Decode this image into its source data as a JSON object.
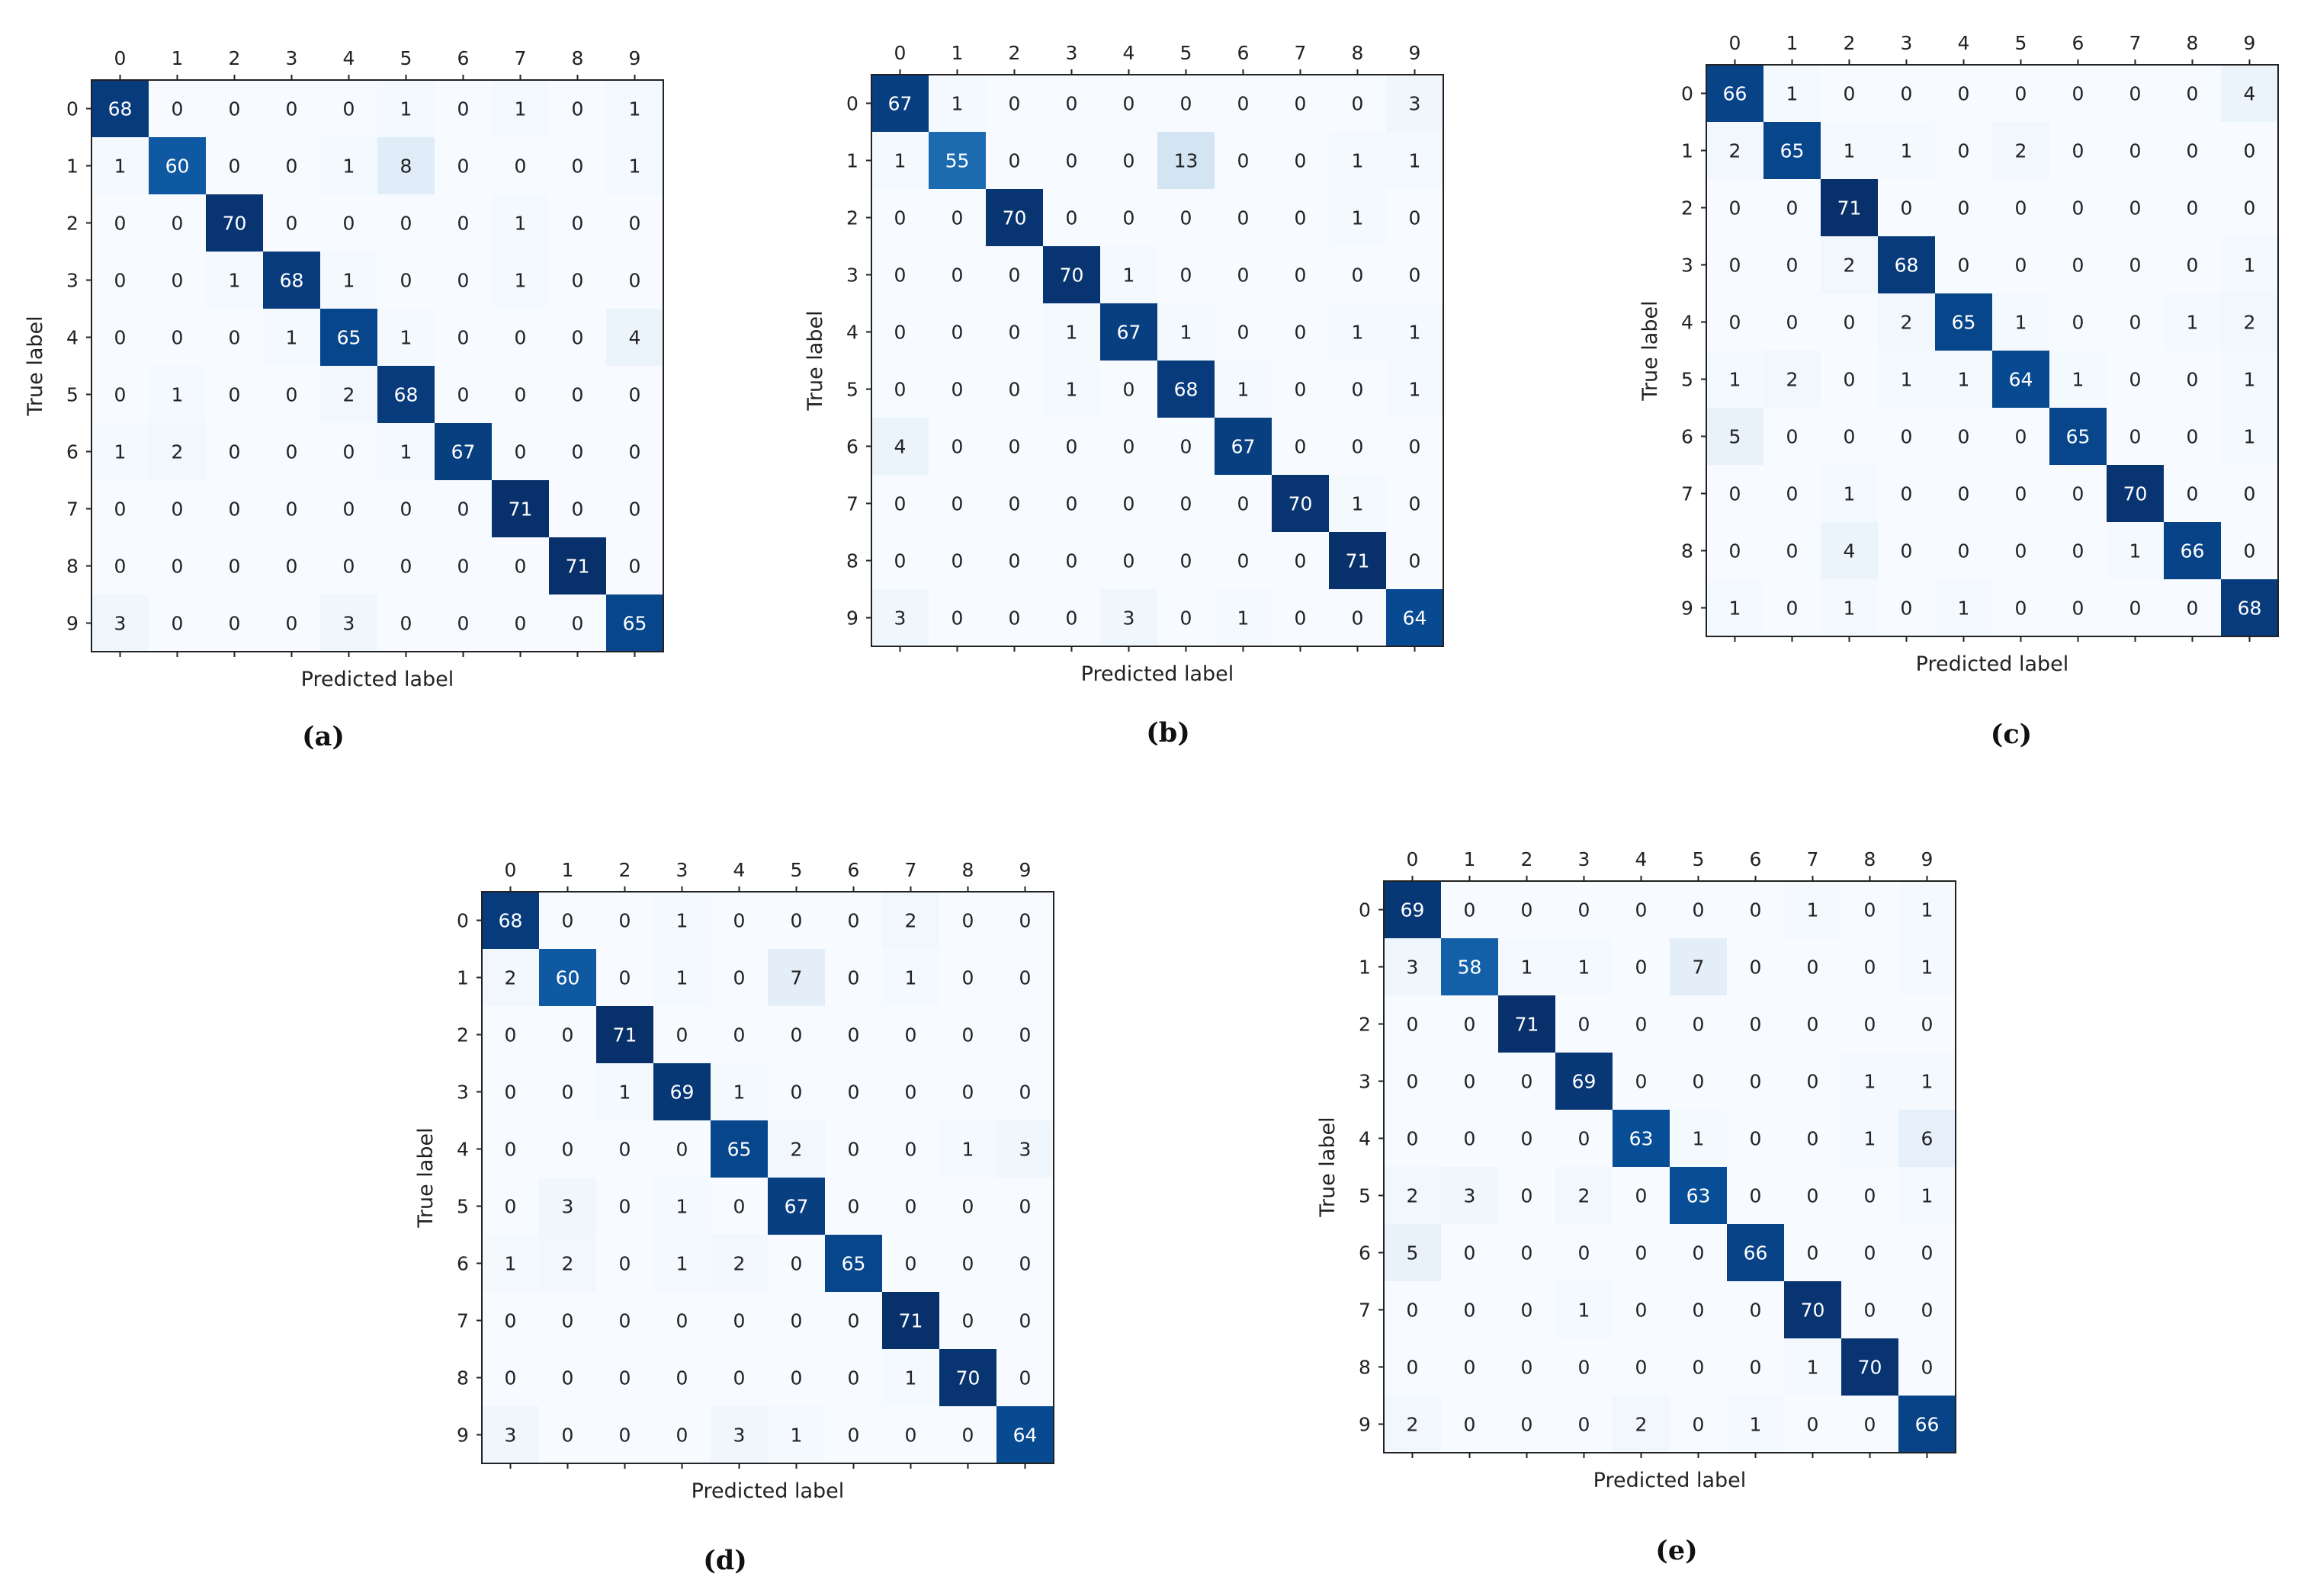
{
  "colors": {
    "colormap": "Blues",
    "light_cell": "#f7fbff",
    "dark_cell": "#08306b",
    "light_text": "#ffffff",
    "dark_text": "#222222",
    "frame": "#222222"
  },
  "chart_data": [
    {
      "type": "heatmap",
      "caption": "(a)",
      "xlabel": "Predicted label",
      "ylabel": "True label",
      "x_ticks": [
        "0",
        "1",
        "2",
        "3",
        "4",
        "5",
        "6",
        "7",
        "8",
        "9"
      ],
      "y_ticks": [
        "0",
        "1",
        "2",
        "3",
        "4",
        "5",
        "6",
        "7",
        "8",
        "9"
      ],
      "values": [
        [
          68,
          0,
          0,
          0,
          0,
          1,
          0,
          1,
          0,
          1
        ],
        [
          1,
          60,
          0,
          0,
          1,
          8,
          0,
          0,
          0,
          1
        ],
        [
          0,
          0,
          70,
          0,
          0,
          0,
          0,
          1,
          0,
          0
        ],
        [
          0,
          0,
          1,
          68,
          1,
          0,
          0,
          1,
          0,
          0
        ],
        [
          0,
          0,
          0,
          1,
          65,
          1,
          0,
          0,
          0,
          4
        ],
        [
          0,
          1,
          0,
          0,
          2,
          68,
          0,
          0,
          0,
          0
        ],
        [
          1,
          2,
          0,
          0,
          0,
          1,
          67,
          0,
          0,
          0
        ],
        [
          0,
          0,
          0,
          0,
          0,
          0,
          0,
          71,
          0,
          0
        ],
        [
          0,
          0,
          0,
          0,
          0,
          0,
          0,
          0,
          71,
          0
        ],
        [
          3,
          0,
          0,
          0,
          3,
          0,
          0,
          0,
          0,
          65
        ]
      ]
    },
    {
      "type": "heatmap",
      "caption": "(b)",
      "xlabel": "Predicted label",
      "ylabel": "True label",
      "x_ticks": [
        "0",
        "1",
        "2",
        "3",
        "4",
        "5",
        "6",
        "7",
        "8",
        "9"
      ],
      "y_ticks": [
        "0",
        "1",
        "2",
        "3",
        "4",
        "5",
        "6",
        "7",
        "8",
        "9"
      ],
      "values": [
        [
          67,
          1,
          0,
          0,
          0,
          0,
          0,
          0,
          0,
          3
        ],
        [
          1,
          55,
          0,
          0,
          0,
          13,
          0,
          0,
          1,
          1
        ],
        [
          0,
          0,
          70,
          0,
          0,
          0,
          0,
          0,
          1,
          0
        ],
        [
          0,
          0,
          0,
          70,
          1,
          0,
          0,
          0,
          0,
          0
        ],
        [
          0,
          0,
          0,
          1,
          67,
          1,
          0,
          0,
          1,
          1
        ],
        [
          0,
          0,
          0,
          1,
          0,
          68,
          1,
          0,
          0,
          1
        ],
        [
          4,
          0,
          0,
          0,
          0,
          0,
          67,
          0,
          0,
          0
        ],
        [
          0,
          0,
          0,
          0,
          0,
          0,
          0,
          70,
          1,
          0
        ],
        [
          0,
          0,
          0,
          0,
          0,
          0,
          0,
          0,
          71,
          0
        ],
        [
          3,
          0,
          0,
          0,
          3,
          0,
          1,
          0,
          0,
          64
        ]
      ]
    },
    {
      "type": "heatmap",
      "caption": "(c)",
      "xlabel": "Predicted label",
      "ylabel": "True label",
      "x_ticks": [
        "0",
        "1",
        "2",
        "3",
        "4",
        "5",
        "6",
        "7",
        "8",
        "9"
      ],
      "y_ticks": [
        "0",
        "1",
        "2",
        "3",
        "4",
        "5",
        "6",
        "7",
        "8",
        "9"
      ],
      "values": [
        [
          66,
          1,
          0,
          0,
          0,
          0,
          0,
          0,
          0,
          4
        ],
        [
          2,
          65,
          1,
          1,
          0,
          2,
          0,
          0,
          0,
          0
        ],
        [
          0,
          0,
          71,
          0,
          0,
          0,
          0,
          0,
          0,
          0
        ],
        [
          0,
          0,
          2,
          68,
          0,
          0,
          0,
          0,
          0,
          1
        ],
        [
          0,
          0,
          0,
          2,
          65,
          1,
          0,
          0,
          1,
          2
        ],
        [
          1,
          2,
          0,
          1,
          1,
          64,
          1,
          0,
          0,
          1
        ],
        [
          5,
          0,
          0,
          0,
          0,
          0,
          65,
          0,
          0,
          1
        ],
        [
          0,
          0,
          1,
          0,
          0,
          0,
          0,
          70,
          0,
          0
        ],
        [
          0,
          0,
          4,
          0,
          0,
          0,
          0,
          1,
          66,
          0
        ],
        [
          1,
          0,
          1,
          0,
          1,
          0,
          0,
          0,
          0,
          68
        ]
      ]
    },
    {
      "type": "heatmap",
      "caption": "(d)",
      "xlabel": "Predicted label",
      "ylabel": "True label",
      "x_ticks": [
        "0",
        "1",
        "2",
        "3",
        "4",
        "5",
        "6",
        "7",
        "8",
        "9"
      ],
      "y_ticks": [
        "0",
        "1",
        "2",
        "3",
        "4",
        "5",
        "6",
        "7",
        "8",
        "9"
      ],
      "values": [
        [
          68,
          0,
          0,
          1,
          0,
          0,
          0,
          2,
          0,
          0
        ],
        [
          2,
          60,
          0,
          1,
          0,
          7,
          0,
          1,
          0,
          0
        ],
        [
          0,
          0,
          71,
          0,
          0,
          0,
          0,
          0,
          0,
          0
        ],
        [
          0,
          0,
          1,
          69,
          1,
          0,
          0,
          0,
          0,
          0
        ],
        [
          0,
          0,
          0,
          0,
          65,
          2,
          0,
          0,
          1,
          3
        ],
        [
          0,
          3,
          0,
          1,
          0,
          67,
          0,
          0,
          0,
          0
        ],
        [
          1,
          2,
          0,
          1,
          2,
          0,
          65,
          0,
          0,
          0
        ],
        [
          0,
          0,
          0,
          0,
          0,
          0,
          0,
          71,
          0,
          0
        ],
        [
          0,
          0,
          0,
          0,
          0,
          0,
          0,
          1,
          70,
          0
        ],
        [
          3,
          0,
          0,
          0,
          3,
          1,
          0,
          0,
          0,
          64
        ]
      ]
    },
    {
      "type": "heatmap",
      "caption": "(e)",
      "xlabel": "Predicted label",
      "ylabel": "True label",
      "x_ticks": [
        "0",
        "1",
        "2",
        "3",
        "4",
        "5",
        "6",
        "7",
        "8",
        "9"
      ],
      "y_ticks": [
        "0",
        "1",
        "2",
        "3",
        "4",
        "5",
        "6",
        "7",
        "8",
        "9"
      ],
      "values": [
        [
          69,
          0,
          0,
          0,
          0,
          0,
          0,
          1,
          0,
          1
        ],
        [
          3,
          58,
          1,
          1,
          0,
          7,
          0,
          0,
          0,
          1
        ],
        [
          0,
          0,
          71,
          0,
          0,
          0,
          0,
          0,
          0,
          0
        ],
        [
          0,
          0,
          0,
          69,
          0,
          0,
          0,
          0,
          1,
          1
        ],
        [
          0,
          0,
          0,
          0,
          63,
          1,
          0,
          0,
          1,
          6
        ],
        [
          2,
          3,
          0,
          2,
          0,
          63,
          0,
          0,
          0,
          1
        ],
        [
          5,
          0,
          0,
          0,
          0,
          0,
          66,
          0,
          0,
          0
        ],
        [
          0,
          0,
          0,
          1,
          0,
          0,
          0,
          70,
          0,
          0
        ],
        [
          0,
          0,
          0,
          0,
          0,
          0,
          0,
          1,
          70,
          0
        ],
        [
          2,
          0,
          0,
          0,
          2,
          0,
          1,
          0,
          0,
          66
        ]
      ]
    }
  ]
}
